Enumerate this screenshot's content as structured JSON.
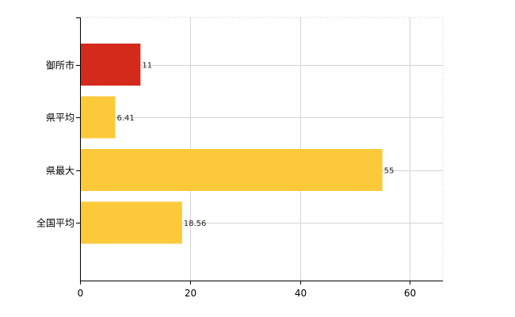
{
  "chart_data": {
    "type": "bar",
    "orientation": "horizontal",
    "categories": [
      "御所市",
      "県平均",
      "県最大",
      "全国平均"
    ],
    "values": [
      11,
      6.41,
      55,
      18.56
    ],
    "data_labels": [
      "11",
      "6.41",
      "55",
      "18.56"
    ],
    "colors": [
      "#d42a1c",
      "#fbc93a",
      "#fbc93a",
      "#fbc93a"
    ],
    "xlim": [
      0,
      66
    ],
    "x_ticks": [
      0,
      20,
      40,
      60
    ],
    "grid": true
  }
}
